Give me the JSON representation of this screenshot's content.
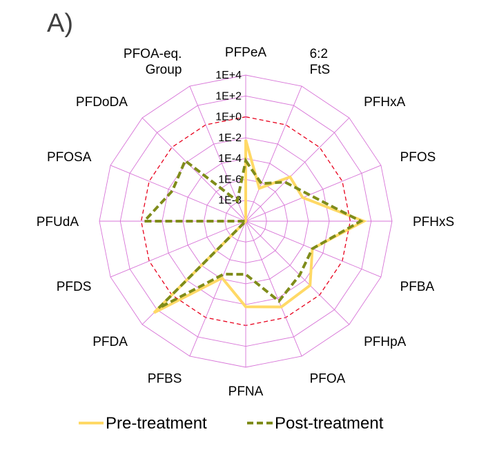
{
  "chart_data": {
    "type": "radar",
    "panel_label": "A)",
    "categories": [
      "PFPeA",
      "6:2 FtS",
      "PFHxA",
      "PFOS",
      "PFHxS",
      "PFBA",
      "PFHpA",
      "PFOA",
      "PFNA",
      "PFBS",
      "PFDA",
      "PFDS",
      "PFUdA",
      "PFOSA",
      "PFDoDA",
      "PFOA-eq. Group"
    ],
    "radial_scale": "log10",
    "radial_ticks": [
      "1E-8",
      "1E-6",
      "1E-4",
      "1E-2",
      "1E+0",
      "1E+2",
      "1E+4"
    ],
    "radial_tick_exponents": [
      -8,
      -6,
      -4,
      -2,
      0,
      2,
      4
    ],
    "radial_range_exponent": [
      -10,
      4
    ],
    "reference_ring_exponent": 0,
    "series": [
      {
        "name": "Pre-treatment",
        "color": "#FFD966",
        "dash": "solid",
        "values_log10": [
          -2.2,
          -6.6,
          -4.0,
          -4.1,
          1.3,
          -3.1,
          -1.3,
          -1.1,
          -1.8,
          -4.1,
          2.4,
          -10,
          -10,
          -10,
          -10,
          -10
        ]
      },
      {
        "name": "Post-treatment",
        "color": "#7F8C1A",
        "dash": "dashed",
        "values_log10": [
          -4.2,
          -6.1,
          -4.7,
          -3.4,
          1.0,
          -3.1,
          -2.7,
          -1.7,
          -4.9,
          -4.5,
          1.8,
          -10,
          -0.3,
          -2.4,
          -1.8,
          -7.9
        ]
      }
    ],
    "legend": {
      "position": "bottom",
      "items": [
        "Pre-treatment",
        "Post-treatment"
      ]
    },
    "colors": {
      "grid": "#D773D7",
      "reference_ring": "#E8001C"
    }
  }
}
